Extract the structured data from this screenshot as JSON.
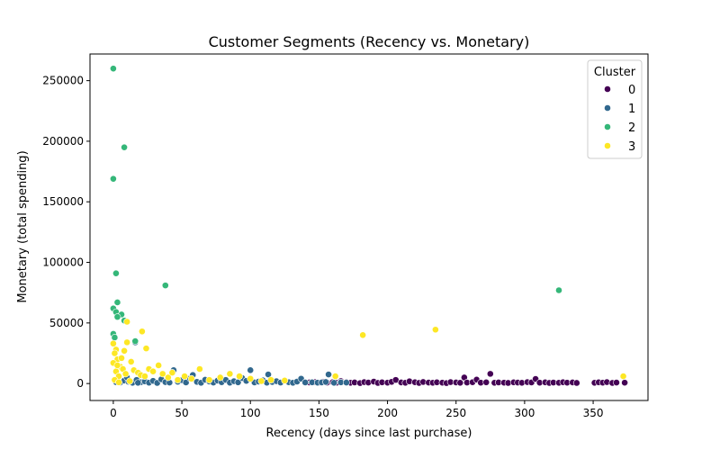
{
  "chart_data": {
    "type": "scatter",
    "title": "Customer Segments (Recency vs. Monetary)",
    "xlabel": "Recency (days since last purchase)",
    "ylabel": "Monetary (total spending)",
    "xlim": [
      -17,
      390
    ],
    "ylim": [
      -14000,
      272000
    ],
    "xticks": [
      0,
      50,
      100,
      150,
      200,
      250,
      300,
      350
    ],
    "yticks": [
      0,
      50000,
      100000,
      150000,
      200000,
      250000
    ],
    "grid": false,
    "legend": {
      "title": "Cluster",
      "position": "top-right"
    },
    "series": [
      {
        "name": "0",
        "color": "#440154",
        "points": [
          [
            143,
            900
          ],
          [
            147,
            1200
          ],
          [
            150,
            600
          ],
          [
            153,
            1500
          ],
          [
            156,
            800
          ],
          [
            160,
            1100
          ],
          [
            163,
            700
          ],
          [
            166,
            2000
          ],
          [
            170,
            1300
          ],
          [
            173,
            600
          ],
          [
            176,
            900
          ],
          [
            180,
            400
          ],
          [
            183,
            1200
          ],
          [
            186,
            800
          ],
          [
            190,
            1600
          ],
          [
            193,
            500
          ],
          [
            196,
            1000
          ],
          [
            200,
            700
          ],
          [
            203,
            1400
          ],
          [
            206,
            3000
          ],
          [
            210,
            900
          ],
          [
            213,
            600
          ],
          [
            216,
            1800
          ],
          [
            220,
            1100
          ],
          [
            223,
            500
          ],
          [
            226,
            1300
          ],
          [
            230,
            800
          ],
          [
            233,
            600
          ],
          [
            236,
            1000
          ],
          [
            240,
            700
          ],
          [
            243,
            400
          ],
          [
            246,
            1200
          ],
          [
            250,
            900
          ],
          [
            253,
            600
          ],
          [
            256,
            5000
          ],
          [
            258,
            800
          ],
          [
            262,
            1100
          ],
          [
            265,
            3200
          ],
          [
            268,
            700
          ],
          [
            272,
            1000
          ],
          [
            275,
            8000
          ],
          [
            278,
            600
          ],
          [
            281,
            900
          ],
          [
            285,
            700
          ],
          [
            288,
            500
          ],
          [
            292,
            1000
          ],
          [
            295,
            800
          ],
          [
            298,
            600
          ],
          [
            302,
            1200
          ],
          [
            305,
            900
          ],
          [
            308,
            3800
          ],
          [
            311,
            700
          ],
          [
            315,
            1000
          ],
          [
            318,
            500
          ],
          [
            321,
            800
          ],
          [
            325,
            600
          ],
          [
            328,
            1100
          ],
          [
            331,
            700
          ],
          [
            335,
            900
          ],
          [
            338,
            500
          ],
          [
            351,
            600
          ],
          [
            354,
            1000
          ],
          [
            357,
            700
          ],
          [
            360,
            1200
          ],
          [
            364,
            500
          ],
          [
            367,
            800
          ],
          [
            373,
            700
          ]
        ]
      },
      {
        "name": "1",
        "color": "#31688e",
        "points": [
          [
            2,
            1200
          ],
          [
            5,
            800
          ],
          [
            8,
            2500
          ],
          [
            11,
            1500
          ],
          [
            14,
            600
          ],
          [
            17,
            3000
          ],
          [
            20,
            1000
          ],
          [
            23,
            1800
          ],
          [
            26,
            700
          ],
          [
            29,
            2200
          ],
          [
            32,
            500
          ],
          [
            35,
            3500
          ],
          [
            38,
            1200
          ],
          [
            41,
            800
          ],
          [
            44,
            11000
          ],
          [
            47,
            1500
          ],
          [
            50,
            2800
          ],
          [
            53,
            900
          ],
          [
            56,
            4200
          ],
          [
            58,
            7000
          ],
          [
            61,
            1400
          ],
          [
            64,
            600
          ],
          [
            67,
            3100
          ],
          [
            70,
            1700
          ],
          [
            73,
            800
          ],
          [
            76,
            2400
          ],
          [
            79,
            1100
          ],
          [
            82,
            3000
          ],
          [
            85,
            700
          ],
          [
            88,
            1900
          ],
          [
            91,
            1000
          ],
          [
            94,
            4500
          ],
          [
            97,
            2200
          ],
          [
            100,
            11000
          ],
          [
            103,
            900
          ],
          [
            106,
            1600
          ],
          [
            109,
            2700
          ],
          [
            112,
            700
          ],
          [
            113,
            7500
          ],
          [
            116,
            1300
          ],
          [
            119,
            1900
          ],
          [
            122,
            800
          ],
          [
            125,
            2500
          ],
          [
            128,
            1100
          ],
          [
            131,
            600
          ],
          [
            134,
            1600
          ],
          [
            137,
            4000
          ],
          [
            140,
            900
          ],
          [
            145,
            1000
          ],
          [
            149,
            700
          ],
          [
            152,
            900
          ],
          [
            155,
            1300
          ],
          [
            157,
            7500
          ],
          [
            161,
            600
          ],
          [
            166,
            1000
          ],
          [
            170,
            800
          ],
          [
            16,
            34000
          ],
          [
            10,
            5000
          ],
          [
            18,
            600
          ]
        ]
      },
      {
        "name": "2",
        "color": "#35b779",
        "points": [
          [
            0,
            260000
          ],
          [
            8,
            195000
          ],
          [
            0,
            169000
          ],
          [
            2,
            91000
          ],
          [
            38,
            81000
          ],
          [
            325,
            77000
          ],
          [
            3,
            67000
          ],
          [
            0,
            62000
          ],
          [
            2,
            59000
          ],
          [
            6,
            57000
          ],
          [
            3,
            55000
          ],
          [
            8,
            52000
          ],
          [
            0,
            41000
          ],
          [
            1,
            38000
          ],
          [
            16,
            35000
          ]
        ]
      },
      {
        "name": "3",
        "color": "#fde725",
        "points": [
          [
            0,
            33000
          ],
          [
            2,
            28000
          ],
          [
            1,
            25000
          ],
          [
            3,
            20000
          ],
          [
            0,
            17000
          ],
          [
            5,
            14000
          ],
          [
            7,
            12000
          ],
          [
            2,
            10000
          ],
          [
            9,
            8000
          ],
          [
            4,
            6000
          ],
          [
            10,
            51000
          ],
          [
            21,
            43000
          ],
          [
            24,
            29000
          ],
          [
            10,
            34000
          ],
          [
            8,
            27000
          ],
          [
            6,
            21000
          ],
          [
            13,
            18000
          ],
          [
            3,
            15000
          ],
          [
            15,
            11000
          ],
          [
            18,
            9000
          ],
          [
            20,
            7000
          ],
          [
            23,
            6000
          ],
          [
            26,
            12000
          ],
          [
            29,
            10000
          ],
          [
            33,
            15000
          ],
          [
            36,
            8000
          ],
          [
            40,
            5000
          ],
          [
            43,
            9000
          ],
          [
            47,
            3000
          ],
          [
            52,
            6000
          ],
          [
            57,
            4000
          ],
          [
            63,
            12000
          ],
          [
            70,
            3000
          ],
          [
            78,
            5000
          ],
          [
            85,
            8000
          ],
          [
            92,
            6000
          ],
          [
            100,
            4000
          ],
          [
            108,
            2000
          ],
          [
            115,
            3000
          ],
          [
            125,
            2500
          ],
          [
            182,
            40000
          ],
          [
            235,
            44500
          ],
          [
            372,
            6000
          ],
          [
            162,
            6000
          ],
          [
            1,
            3000
          ],
          [
            4,
            1000
          ],
          [
            12,
            2000
          ]
        ]
      }
    ]
  }
}
